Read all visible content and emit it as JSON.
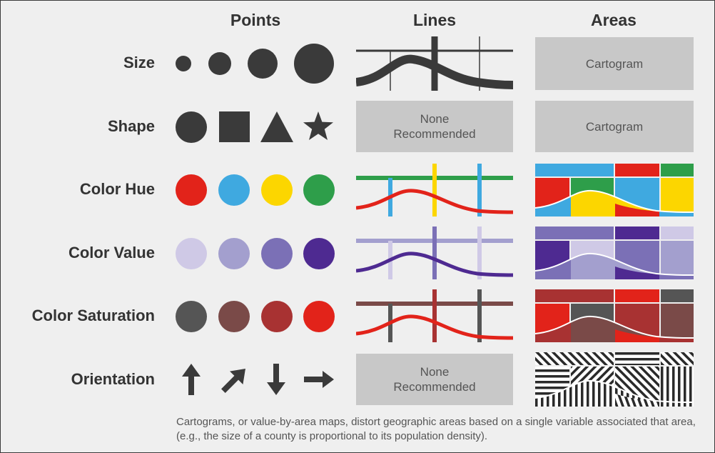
{
  "columns": {
    "points": "Points",
    "lines": "Lines",
    "areas": "Areas"
  },
  "rows": {
    "size": "Size",
    "shape": "Shape",
    "color_hue": "Color Hue",
    "color_value": "Color Value",
    "color_saturation": "Color Saturation",
    "orientation": "Orientation"
  },
  "boxes": {
    "cartogram": "Cartogram",
    "none_line1": "None",
    "none_line2": "Recommended"
  },
  "caption": "Cartograms, or value-by-area maps, distort geographic areas based on a single variable associated that area, (e.g., the size of a county is proportional to its population density).",
  "colors": {
    "dark": "#3a3a3a",
    "hue": [
      "#e2231a",
      "#3fa9e0",
      "#fcd600",
      "#2e9e4a"
    ],
    "value": [
      "#cfc9e6",
      "#a39fce",
      "#7b70b6",
      "#4e2a91"
    ],
    "saturation": [
      "#555555",
      "#7a4a48",
      "#a83232",
      "#e2231a"
    ]
  }
}
